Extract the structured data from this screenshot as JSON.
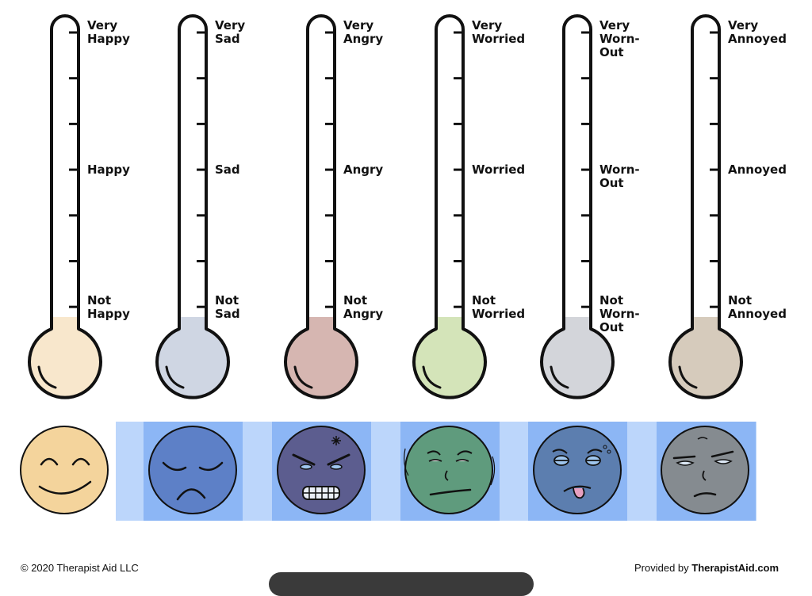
{
  "thermometers": [
    {
      "top": "Very\nHappy",
      "mid": "Happy",
      "bottom": "Not\nHappy",
      "fill": "#f8e7cc"
    },
    {
      "top": "Very\nSad",
      "mid": "Sad",
      "bottom": "Not\nSad",
      "fill": "#cfd6e3"
    },
    {
      "top": "Very\nAngry",
      "mid": "Angry",
      "bottom": "Not\nAngry",
      "fill": "#d6b6b1"
    },
    {
      "top": "Very\nWorried",
      "mid": "Worried",
      "bottom": "Not\nWorried",
      "fill": "#d4e4b9"
    },
    {
      "top": "Very\nWorn-Out",
      "mid": "Worn-Out",
      "bottom": "Not\nWorn-Out",
      "fill": "#d3d5da"
    },
    {
      "top": "Very\nAnnoyed",
      "mid": "Annoyed",
      "bottom": "Not\nAnnoyed",
      "fill": "#d6cbbc"
    }
  ],
  "faces": [
    {
      "emotion": "happy",
      "color": "#f4d49c"
    },
    {
      "emotion": "sad",
      "color": "#5d80c7"
    },
    {
      "emotion": "angry",
      "color": "#5c5d8f"
    },
    {
      "emotion": "worried",
      "color": "#5f9b7d"
    },
    {
      "emotion": "worn-out",
      "color": "#5c7eaf"
    },
    {
      "emotion": "annoyed",
      "color": "#858b90"
    }
  ],
  "footer": {
    "copyright": "© 2020 Therapist Aid LLC",
    "provided_prefix": "Provided by ",
    "provided_site": "TherapistAid.com"
  }
}
